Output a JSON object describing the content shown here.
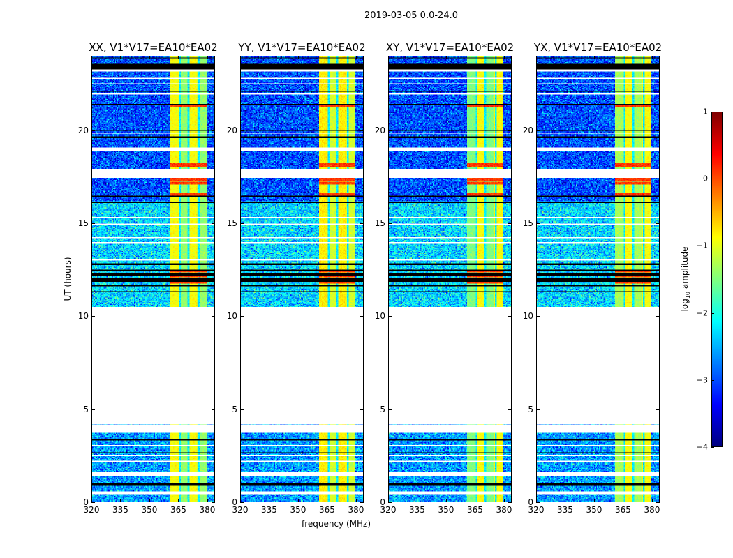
{
  "chart_data": {
    "type": "heatmap",
    "title": "2019-03-05 0.0-24.0",
    "xlabel": "frequency (MHz)",
    "ylabel": "UT (hours)",
    "xlim": [
      320,
      384
    ],
    "ylim": [
      0,
      24
    ],
    "xticks": [
      320,
      335,
      350,
      365,
      380
    ],
    "yticks": [
      0,
      5,
      10,
      15,
      20
    ],
    "colorbar": {
      "label": "log",
      "label_sub": "10",
      "label_rest": " amplitude",
      "range": [
        -4,
        1
      ],
      "ticks": [
        1,
        0,
        -1,
        -2,
        -3,
        -4
      ],
      "tick_labels": [
        "1",
        "0",
        "−1",
        "−2",
        "−3",
        "−4"
      ],
      "colormap": "jet"
    },
    "panels": [
      {
        "title": "XX, V1*V17=EA10*EA02",
        "band_level": -0.9,
        "band_sub_level": -1.4
      },
      {
        "title": "YY, V1*V17=EA10*EA02",
        "band_level": -0.8,
        "band_sub_level": -1.1
      },
      {
        "title": "XY, V1*V17=EA10*EA02",
        "band_level": -1.5,
        "band_sub_level": -0.9
      },
      {
        "title": "YX, V1*V17=EA10*EA02",
        "band_level": -1.3,
        "band_sub_level": -0.9
      }
    ],
    "rfi_band_mhz": [
      361,
      380
    ],
    "rfi_gaps_mhz": [
      366,
      370.5,
      376
    ],
    "background_levels": [
      {
        "hours": [
          0,
          4.15
        ],
        "log_amp": -2.6
      },
      {
        "hours": [
          10.5,
          16.2
        ],
        "log_amp": -2.3
      },
      {
        "hours": [
          16.2,
          24
        ],
        "log_amp": -3.0
      }
    ],
    "flagged_white_hours": [
      [
        0.42,
        0.57
      ],
      [
        1.35,
        1.58
      ],
      [
        2.15,
        2.2
      ],
      [
        2.45,
        2.5
      ],
      [
        3.0,
        3.05
      ],
      [
        3.72,
        4.1
      ],
      [
        4.15,
        10.5
      ],
      [
        13.0,
        13.1
      ],
      [
        13.9,
        14.0
      ],
      [
        14.2,
        14.25
      ],
      [
        14.9,
        15.0
      ],
      [
        15.3,
        15.35
      ],
      [
        17.45,
        17.9
      ],
      [
        18.9,
        19.1
      ],
      [
        19.85,
        19.9
      ],
      [
        21.95,
        22.0
      ],
      [
        22.5,
        22.55
      ],
      [
        22.8,
        22.85
      ],
      [
        23.2,
        23.3
      ]
    ],
    "black_rows_hours": [
      [
        0.83,
        1.0
      ],
      [
        2.6,
        2.65
      ],
      [
        3.3,
        3.35
      ],
      [
        10.9,
        10.95
      ],
      [
        11.3,
        11.35
      ],
      [
        11.6,
        11.7
      ],
      [
        11.85,
        12.05
      ],
      [
        12.15,
        12.3
      ],
      [
        12.45,
        12.5
      ],
      [
        12.75,
        12.85
      ],
      [
        16.1,
        16.15
      ],
      [
        16.4,
        16.5
      ],
      [
        19.6,
        19.7
      ],
      [
        20.0,
        20.05
      ],
      [
        21.4,
        21.45
      ],
      [
        22.1,
        22.15
      ],
      [
        23.3,
        23.6
      ],
      [
        23.9,
        23.95
      ]
    ],
    "hot_rows_hours": [
      [
        11.75,
        11.85
      ],
      [
        12.1,
        12.15
      ],
      [
        12.35,
        12.45
      ],
      [
        16.5,
        16.65
      ],
      [
        17.1,
        17.25
      ],
      [
        17.3,
        17.45
      ],
      [
        18.05,
        18.25
      ],
      [
        21.3,
        21.4
      ]
    ]
  }
}
